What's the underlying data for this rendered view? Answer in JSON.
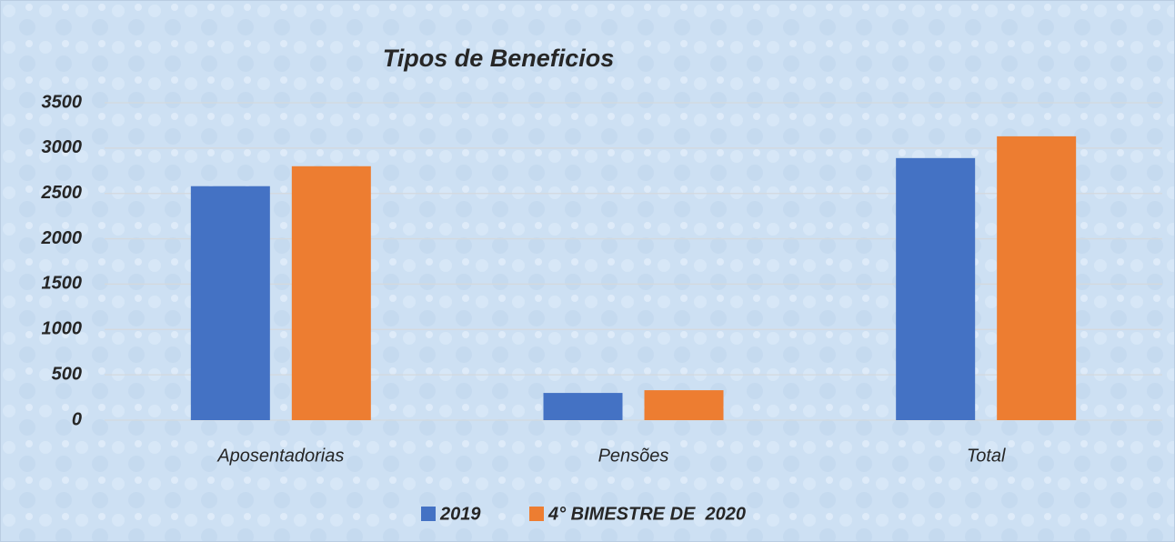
{
  "chart_data": {
    "type": "bar",
    "title": "Tipos de Beneficios",
    "categories": [
      "Aposentadorias",
      "Pensões",
      "Total"
    ],
    "series": [
      {
        "name": "2019",
        "color": "#4472c4",
        "values": [
          2580,
          300,
          2890
        ]
      },
      {
        "name": "4° BIMESTRE DE  2020",
        "color": "#ed7d31",
        "values": [
          2800,
          330,
          3130
        ]
      }
    ],
    "ylim": [
      0,
      3500
    ],
    "yticks": [
      0,
      500,
      1000,
      1500,
      2000,
      2500,
      3000,
      3500
    ],
    "grid": true,
    "legend": "bottom"
  }
}
